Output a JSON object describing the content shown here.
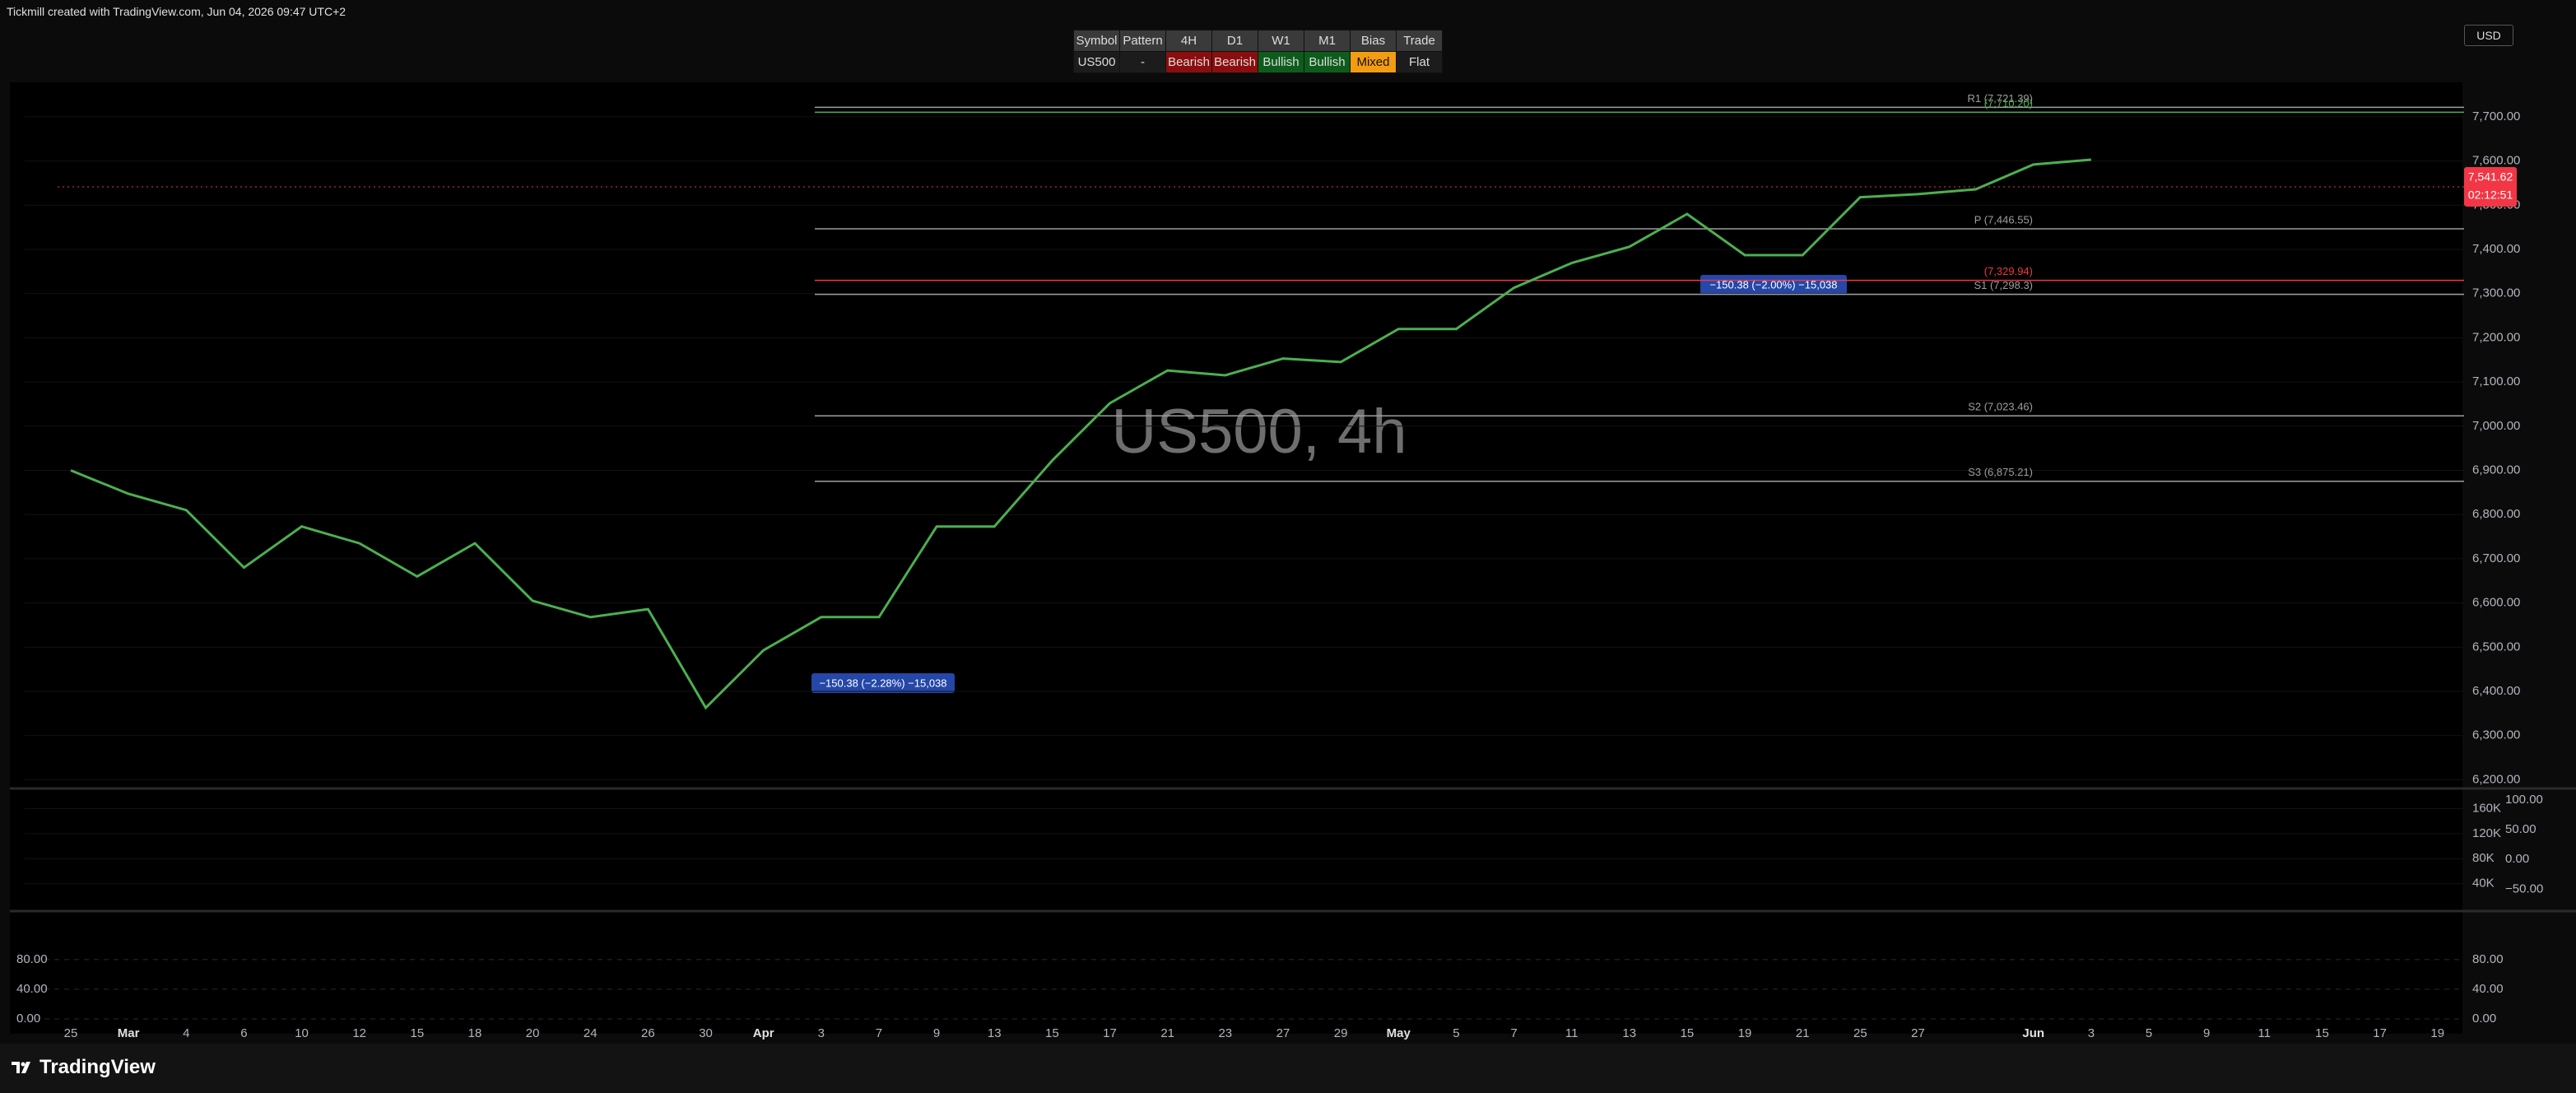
{
  "header": {
    "credit": "Tickmill created with TradingView.com, Jun 04, 2026 09:47 UTC+2",
    "currency": "USD"
  },
  "table": {
    "columns": [
      "Symbol",
      "Pattern",
      "4H",
      "D1",
      "W1",
      "M1",
      "Bias",
      "Trade"
    ],
    "rows": [
      [
        "US500",
        "-",
        "Bearish",
        "Bearish",
        "Bullish",
        "Bullish",
        "Mixed",
        "Flat"
      ]
    ]
  },
  "chart_data": [
    {
      "type": "line",
      "watermark": "US500, 4h",
      "categories": [
        "25",
        "Mar",
        "4",
        "6",
        "10",
        "12",
        "15",
        "18",
        "20",
        "24",
        "26",
        "30",
        "Apr",
        "3",
        "7",
        "9",
        "13",
        "15",
        "17",
        "21",
        "23",
        "27",
        "29",
        "May",
        "5",
        "7",
        "11",
        "13",
        "15",
        "19",
        "21",
        "25",
        "27",
        null,
        "Jun",
        "3",
        "5",
        "9",
        "11",
        "15",
        "17",
        "19"
      ],
      "values": [
        6900,
        6847,
        6810,
        6680,
        6773,
        6735,
        6660,
        6735,
        6605,
        6568,
        6586,
        6363,
        6493,
        6568,
        6568,
        6773,
        6773,
        6922,
        7052,
        7126,
        7115,
        7153,
        7145,
        7220,
        7220,
        7313,
        7369,
        7406,
        7480,
        7387,
        7387,
        7518,
        7525,
        7536,
        7592,
        7603,
        null,
        null,
        null,
        null,
        null,
        null
      ],
      "color": "#4caf50",
      "ylim": [
        6184,
        7778
      ],
      "yticks": [
        {
          "value": 6200,
          "label": "6,200.00"
        },
        {
          "value": 6300,
          "label": "6,300.00"
        },
        {
          "value": 6400,
          "label": "6,400.00"
        },
        {
          "value": 6500,
          "label": "6,500.00"
        },
        {
          "value": 6600,
          "label": "6,600.00"
        },
        {
          "value": 6700,
          "label": "6,700.00"
        },
        {
          "value": 6800,
          "label": "6,800.00"
        },
        {
          "value": 6900,
          "label": "6,900.00"
        },
        {
          "value": 7000,
          "label": "7,000.00"
        },
        {
          "value": 7100,
          "label": "7,100.00"
        },
        {
          "value": 7200,
          "label": "7,200.00"
        },
        {
          "value": 7300,
          "label": "7,300.00"
        },
        {
          "value": 7400,
          "label": "7,400.00"
        },
        {
          "value": 7500,
          "label": "7,500.00"
        },
        {
          "value": 7600,
          "label": "7,600.00"
        },
        {
          "value": 7700,
          "label": "7,700.00"
        }
      ],
      "last_price": {
        "value": 7541.62,
        "label": "7,541.62"
      },
      "countdown": "02:12:51",
      "levels": [
        {
          "value": 7721.39,
          "label": "R1 (7,721.39)",
          "color": "#9e9e9e"
        },
        {
          "value": 7710.2,
          "label": "(7,710.20)",
          "color": "#4caf50"
        },
        {
          "value": 7446.55,
          "label": "P (7,446.55)",
          "color": "#9e9e9e"
        },
        {
          "value": 7329.94,
          "label": "(7,329.94)",
          "color": "#f23645"
        },
        {
          "value": 7298.3,
          "label": "S1 (7,298.3)",
          "color": "#9e9e9e"
        },
        {
          "value": 7023.46,
          "label": "S2 (7,023.46)",
          "color": "#9e9e9e"
        },
        {
          "value": 6875.21,
          "label": "S3 (6,875.21)",
          "color": "#9e9e9e"
        }
      ],
      "measures": [
        "−150.38 (−2.00%) −15,038",
        "−150.38 (−2.28%) −15,038"
      ]
    },
    {
      "type": "bar",
      "ylim": [
        0,
        187000
      ],
      "yticks": [
        {
          "value": 40000,
          "label": "40K"
        },
        {
          "value": 80000,
          "label": "80K"
        },
        {
          "value": 120000,
          "label": "120K"
        },
        {
          "value": 160000,
          "label": "160K"
        }
      ],
      "y2lim": [
        -82.4,
        113.5
      ],
      "y2ticks": [
        {
          "value": -50,
          "label": "−50.00"
        },
        {
          "value": 0,
          "label": "0.00"
        },
        {
          "value": 50,
          "label": "50.00"
        },
        {
          "value": 100,
          "label": "100.00"
        }
      ]
    },
    {
      "type": "line",
      "ylim": [
        -6.7,
        142
      ],
      "yticks": [
        {
          "value": 0,
          "label": "0.00"
        },
        {
          "value": 40,
          "label": "40.00"
        },
        {
          "value": 80,
          "label": "80.00"
        }
      ]
    }
  ],
  "footer": {
    "brand": "TradingView"
  }
}
